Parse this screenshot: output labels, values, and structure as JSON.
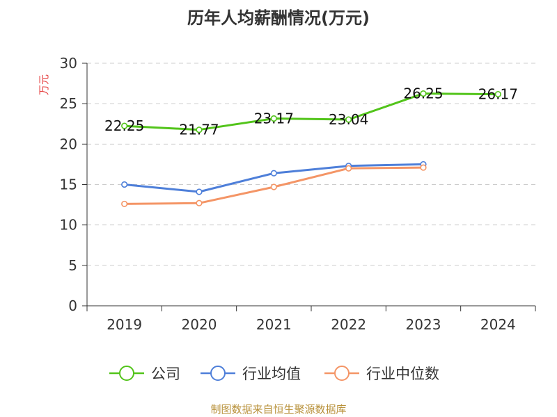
{
  "chart_data": {
    "type": "line",
    "title": "历年人均薪酬情况(万元)",
    "ylabel": "万元",
    "xlabel": "",
    "categories": [
      "2019",
      "2020",
      "2021",
      "2022",
      "2023",
      "2024"
    ],
    "ylim": [
      0,
      30
    ],
    "yticks": [
      0,
      5,
      10,
      15,
      20,
      25,
      30
    ],
    "grid": true,
    "legend_position": "bottom",
    "series": [
      {
        "name": "公司",
        "color": "#52c41a",
        "values": [
          22.25,
          21.77,
          23.17,
          23.04,
          26.25,
          26.17
        ],
        "show_labels": true
      },
      {
        "name": "行业均值",
        "color": "#4e7fd9",
        "values": [
          15.0,
          14.1,
          16.4,
          17.3,
          17.5,
          null
        ],
        "show_labels": false
      },
      {
        "name": "行业中位数",
        "color": "#f49566",
        "values": [
          12.6,
          12.7,
          14.7,
          17.0,
          17.1,
          null
        ],
        "show_labels": false
      }
    ],
    "ylabel_color": "#e64545"
  },
  "source_note": "制图数据来自恒生聚源数据库"
}
